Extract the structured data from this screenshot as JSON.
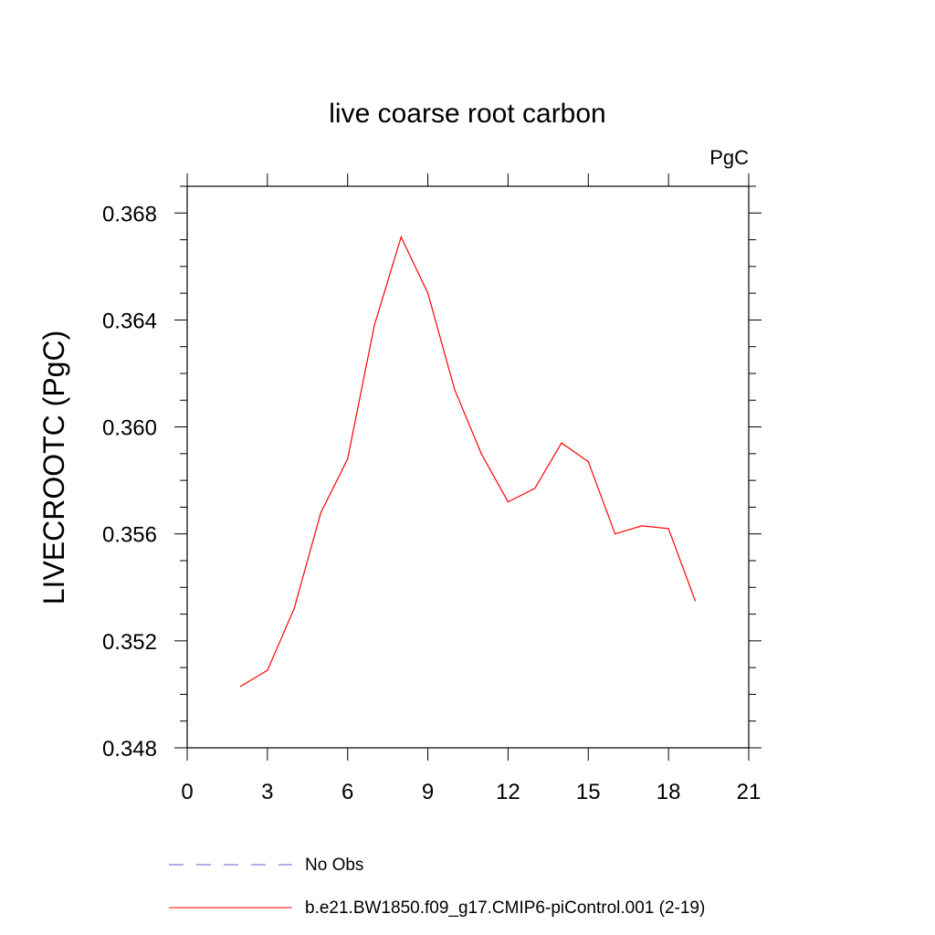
{
  "chart_data": {
    "type": "line",
    "title": "live coarse root carbon",
    "units_label": "PgC",
    "ylabel": "LIVECROOTC  (PgC)",
    "xlabel": "",
    "xlim": [
      0,
      21
    ],
    "ylim": [
      0.348,
      0.369
    ],
    "x_ticks": [
      0,
      3,
      6,
      9,
      12,
      15,
      18,
      21
    ],
    "x_tick_labels": [
      "0",
      "3",
      "6",
      "9",
      "12",
      "15",
      "18",
      "21"
    ],
    "y_ticks": [
      0.348,
      0.352,
      0.356,
      0.36,
      0.364,
      0.368
    ],
    "y_tick_labels": [
      "0.348",
      "0.352",
      "0.356",
      "0.360",
      "0.364",
      "0.368"
    ],
    "grid": false,
    "legend_placement": "bottom",
    "series": [
      {
        "name": "b.e21.BW1850.f09_g17.CMIP6-piControl.001 (2-19)",
        "color": "#ff0000",
        "style": "solid",
        "x": [
          2,
          3,
          4,
          5,
          6,
          7,
          8,
          9,
          10,
          11,
          12,
          13,
          14,
          15,
          16,
          17,
          18,
          19
        ],
        "y": [
          0.3503,
          0.3509,
          0.3532,
          0.3568,
          0.3588,
          0.3638,
          0.3671,
          0.365,
          0.3614,
          0.359,
          0.3572,
          0.3577,
          0.3594,
          0.3587,
          0.356,
          0.3563,
          0.3562,
          0.3535
        ]
      }
    ],
    "legend": [
      {
        "label": "No Obs",
        "color": "#6a5acd",
        "style": "dashed"
      },
      {
        "label": "b.e21.BW1850.f09_g17.CMIP6-piControl.001 (2-19)",
        "color": "#ff0000",
        "style": "solid"
      }
    ]
  }
}
